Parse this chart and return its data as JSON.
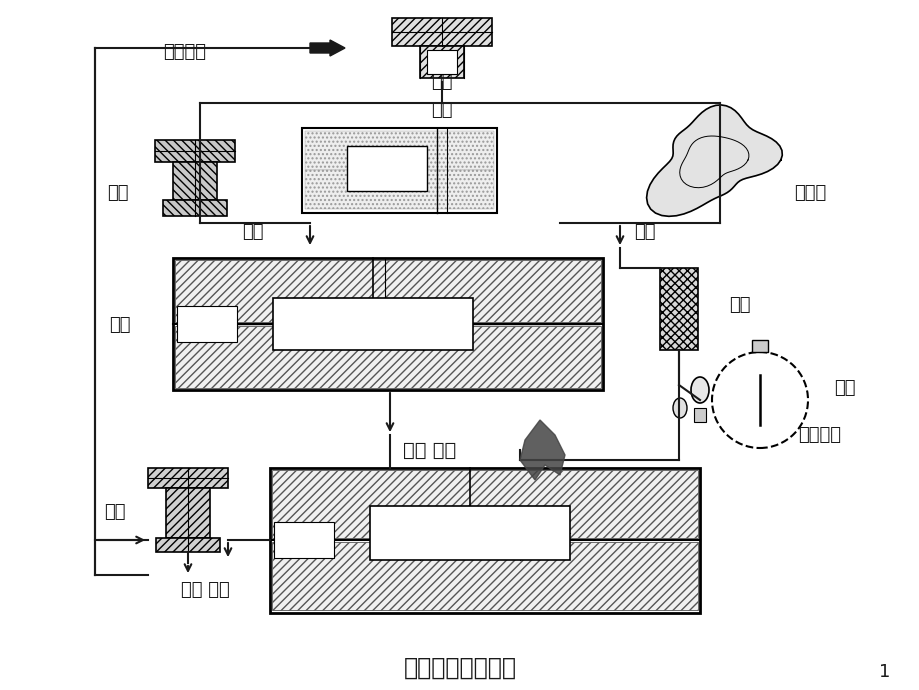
{
  "title": "砂型铸造工艺过程",
  "page_num": "1",
  "bg_color": "#ffffff",
  "line_color": "#1a1a1a",
  "labels": {
    "jixie_jiagong": "机械加工",
    "lingjian": "零件",
    "zhisha": "制砂",
    "mumu": "木模",
    "zaoxing": "造型",
    "zaoxin": "造芯",
    "xin_he": "型芯盒",
    "zhuxing": "铸型",
    "xin": "型芯",
    "lurou": "熔炉",
    "ronghua_jinshu": "熔化金属",
    "hexiang_zhezhu": "合箱 浇注",
    "zhujian": "铸件",
    "luosha_qingli": "落砂 清理"
  },
  "font_size_label": 13,
  "font_size_title": 17
}
